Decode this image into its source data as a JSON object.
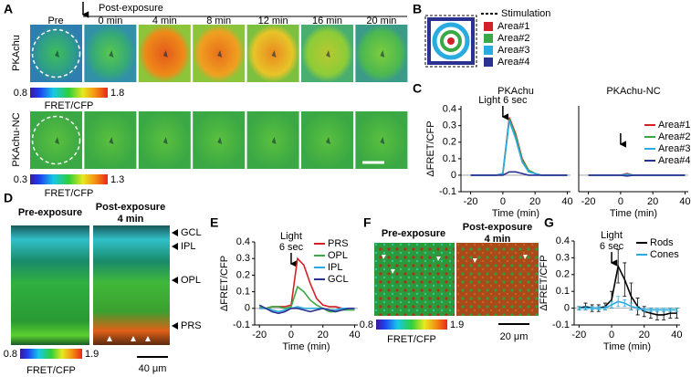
{
  "panel_labels": [
    "A",
    "B",
    "C",
    "D",
    "E",
    "F",
    "G"
  ],
  "panel_a": {
    "pre": "Pre",
    "post_exposure": "Post-exposure",
    "timepoints": [
      "0 min",
      "4 min",
      "8 min",
      "12 min",
      "16 min",
      "20 min"
    ],
    "rows": [
      {
        "label": "PKAchu",
        "colorbar_min": 0.8,
        "colorbar_max": 1.8,
        "colorbar_label": "FRET/CFP"
      },
      {
        "label": "PKAchu-NC",
        "colorbar_min": 0.3,
        "colorbar_max": 1.3,
        "colorbar_label": "FRET/CFP"
      }
    ]
  },
  "panel_b": {
    "stimulation": "Stimulation",
    "areas": [
      {
        "name": "Area#1",
        "color": "#d42027"
      },
      {
        "name": "Area#2",
        "color": "#3aa845"
      },
      {
        "name": "Area#3",
        "color": "#29abe2"
      },
      {
        "name": "Area#4",
        "color": "#2b3190"
      }
    ]
  },
  "panel_d": {
    "pre": "Pre-exposure",
    "post": "Post-exposure",
    "post_time": "4 min",
    "layers": [
      {
        "name": "GCL",
        "color": "#2b3190"
      },
      {
        "name": "IPL",
        "color": "#4a9fd6"
      },
      {
        "name": "OPL",
        "color": "#2e9e3e"
      },
      {
        "name": "PRS",
        "color": "#c0202a"
      }
    ],
    "colorbar_min": 0.8,
    "colorbar_max": 1.9,
    "colorbar_label": "FRET/CFP",
    "scale_bar": "40 μm"
  },
  "panel_f": {
    "pre": "Pre-exposure",
    "post": "Post-exposure",
    "post_time": "4 min",
    "colorbar_min": 0.8,
    "colorbar_max": 1.9,
    "colorbar_label": "FRET/CFP",
    "scale_bar": "20 μm"
  },
  "chart_data": [
    {
      "type": "line",
      "title": "PKAchu",
      "annotation": [
        "Light 6 sec"
      ],
      "annotation_x": 0,
      "x": [
        -20,
        -16,
        -12,
        -8,
        -4,
        0,
        4,
        8,
        12,
        16,
        20,
        24,
        28,
        32,
        36,
        40
      ],
      "series": [
        {
          "color": "#d42027",
          "values": [
            0,
            0,
            0,
            0,
            0,
            0.01,
            0.35,
            0.25,
            0.1,
            0.03,
            0.01,
            0,
            0,
            0,
            0,
            0
          ]
        },
        {
          "color": "#3aa845",
          "values": [
            0,
            0,
            0,
            0,
            0,
            0.01,
            0.34,
            0.24,
            0.09,
            0.03,
            0.01,
            0,
            0,
            0,
            0,
            0
          ]
        },
        {
          "color": "#29abe2",
          "values": [
            0,
            0,
            0,
            0,
            0,
            0.01,
            0.33,
            0.22,
            0.08,
            0.02,
            0.01,
            0,
            0,
            0,
            0,
            0
          ]
        },
        {
          "color": "#2b3190",
          "values": [
            0,
            0,
            0,
            0,
            0,
            0,
            0.02,
            0.02,
            0.01,
            0,
            0,
            0,
            0,
            0,
            0,
            0
          ]
        }
      ],
      "xlim": [
        -26,
        42
      ],
      "ylim": [
        -0.1,
        0.42
      ],
      "xticks": [
        -20,
        0,
        20,
        40
      ],
      "yticks": [
        -0.1,
        0,
        0.1,
        0.2,
        0.3,
        0.4
      ],
      "xlabel": "Time (min)",
      "ylabel": "ΔFRET/CFP"
    },
    {
      "type": "line",
      "title": "PKAchu-NC",
      "annotation_x": 0,
      "x": [
        -20,
        -16,
        -12,
        -8,
        -4,
        0,
        4,
        8,
        12,
        16,
        20,
        24,
        28,
        32,
        36,
        40
      ],
      "series": [
        {
          "name": "Area#1",
          "color": "#d42027",
          "values": [
            0,
            0,
            0,
            0,
            0,
            0,
            0.01,
            0,
            0,
            0,
            0,
            0,
            0,
            0,
            0,
            0
          ]
        },
        {
          "name": "Area#2",
          "color": "#3aa845",
          "values": [
            0,
            0,
            0,
            0,
            0,
            0,
            0.005,
            0,
            0,
            0,
            0,
            0,
            0,
            0,
            0,
            0
          ]
        },
        {
          "name": "Area#3",
          "color": "#29abe2",
          "values": [
            0,
            0,
            0,
            0,
            0,
            0,
            0.005,
            0,
            0,
            0,
            0,
            0,
            0,
            0,
            0,
            0
          ]
        },
        {
          "name": "Area#4",
          "color": "#2b3190",
          "values": [
            0,
            0,
            0,
            0,
            0,
            0,
            -0.005,
            0,
            0,
            0,
            0,
            0,
            0,
            0,
            0,
            0
          ]
        }
      ],
      "xlim": [
        -26,
        42
      ],
      "ylim": [
        -0.1,
        0.42
      ],
      "xticks": [
        -20,
        0,
        20,
        40
      ],
      "xlabel": "Time (min)",
      "legend": "center right"
    },
    {
      "type": "line",
      "annotation": [
        "Light",
        "6 sec"
      ],
      "annotation_x": 0,
      "x": [
        -20,
        -16,
        -12,
        -8,
        -4,
        0,
        4,
        8,
        12,
        16,
        20,
        24,
        28,
        32,
        36,
        40
      ],
      "series": [
        {
          "name": "PRS",
          "color": "#d42027",
          "values": [
            0,
            0,
            0.01,
            0.01,
            0.01,
            0.02,
            0.3,
            0.26,
            0.15,
            0.06,
            0.02,
            0.01,
            0.01,
            0,
            0,
            0
          ]
        },
        {
          "name": "OPL",
          "color": "#3aa845",
          "values": [
            0.01,
            0,
            0.01,
            0.01,
            0,
            0.01,
            0.13,
            0.1,
            0.05,
            0.02,
            0,
            -0.02,
            -0.02,
            -0.01,
            -0.01,
            -0.01
          ]
        },
        {
          "name": "IPL",
          "color": "#29abe2",
          "values": [
            0,
            0,
            -0.01,
            -0.02,
            -0.01,
            0,
            0.01,
            0,
            0,
            0,
            0,
            -0.01,
            -0.01,
            0,
            0,
            0
          ]
        },
        {
          "name": "GCL",
          "color": "#2b3190",
          "values": [
            0.02,
            0,
            -0.02,
            -0.03,
            -0.02,
            0,
            0,
            -0.01,
            -0.02,
            -0.01,
            0,
            -0.01,
            -0.02,
            -0.01,
            0,
            0
          ]
        }
      ],
      "xlim": [
        -23,
        42
      ],
      "ylim": [
        -0.1,
        0.4
      ],
      "xticks": [
        -20,
        0,
        20,
        40
      ],
      "yticks": [
        -0.1,
        0,
        0.1,
        0.2,
        0.3,
        0.4
      ],
      "xlabel": "Time (min)",
      "ylabel": "ΔFRET/CFP",
      "legend": "upper right"
    },
    {
      "type": "line",
      "annotation": [
        "Light",
        "6 sec"
      ],
      "annotation_x": 0,
      "x": [
        -20,
        -16,
        -12,
        -8,
        -4,
        0,
        4,
        8,
        12,
        16,
        20,
        24,
        28,
        32,
        36,
        40
      ],
      "series": [
        {
          "name": "Rods",
          "color": "#000000",
          "values": [
            0,
            0.01,
            0,
            0,
            0.01,
            0.05,
            0.25,
            0.17,
            0.07,
            0.01,
            -0.02,
            -0.03,
            -0.04,
            -0.04,
            -0.03,
            -0.03
          ],
          "errors": [
            0.01,
            0.02,
            0.02,
            0.02,
            0.02,
            0.05,
            0.1,
            0.1,
            0.08,
            0.05,
            0.03,
            0.03,
            0.03,
            0.03,
            0.03,
            0.03
          ]
        },
        {
          "name": "Cones",
          "color": "#29abe2",
          "values": [
            0,
            0,
            0,
            0,
            0,
            0.02,
            0.04,
            0.03,
            0.01,
            0,
            -0.01,
            -0.01,
            -0.01,
            -0.01,
            -0.01,
            -0.01
          ],
          "errors": [
            0.01,
            0.01,
            0.01,
            0.01,
            0.01,
            0.02,
            0.03,
            0.02,
            0.02,
            0.01,
            0.01,
            0.01,
            0.01,
            0.01,
            0.01,
            0.01
          ]
        }
      ],
      "xlim": [
        -23,
        42
      ],
      "ylim": [
        -0.1,
        0.4
      ],
      "xticks": [
        -20,
        0,
        20,
        40
      ],
      "yticks": [
        -0.1,
        0,
        0.1,
        0.2,
        0.3,
        0.4
      ],
      "xlabel": "Time (min)",
      "ylabel": "ΔFRET/CFP",
      "legend": "upper right"
    }
  ]
}
